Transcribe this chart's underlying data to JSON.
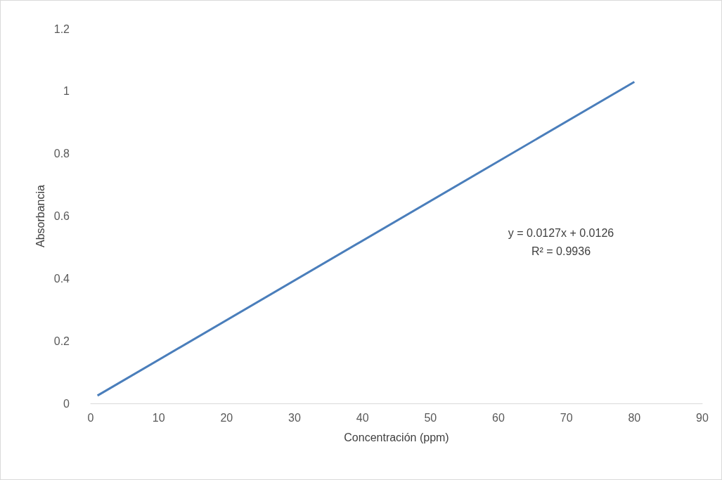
{
  "chart_data": {
    "type": "line",
    "xlabel": "Concentración (ppm)",
    "ylabel": "Absorbancia",
    "x": [
      1,
      80
    ],
    "series": [
      {
        "color": "#4a7ebb",
        "values": [
          0.025,
          1.03
        ]
      }
    ],
    "xlim": [
      0,
      90
    ],
    "xticks": [
      0,
      10,
      20,
      30,
      40,
      50,
      60,
      70,
      80,
      90
    ],
    "ylim": [
      0,
      1.2
    ],
    "yticks": [
      0,
      0.2,
      0.4,
      0.6,
      0.8,
      1,
      1.2
    ],
    "grid": false,
    "marker": "none",
    "line_style": "solid",
    "annotations": [
      "y = 0.0127x + 0.0126",
      "R² = 0.9936"
    ]
  }
}
